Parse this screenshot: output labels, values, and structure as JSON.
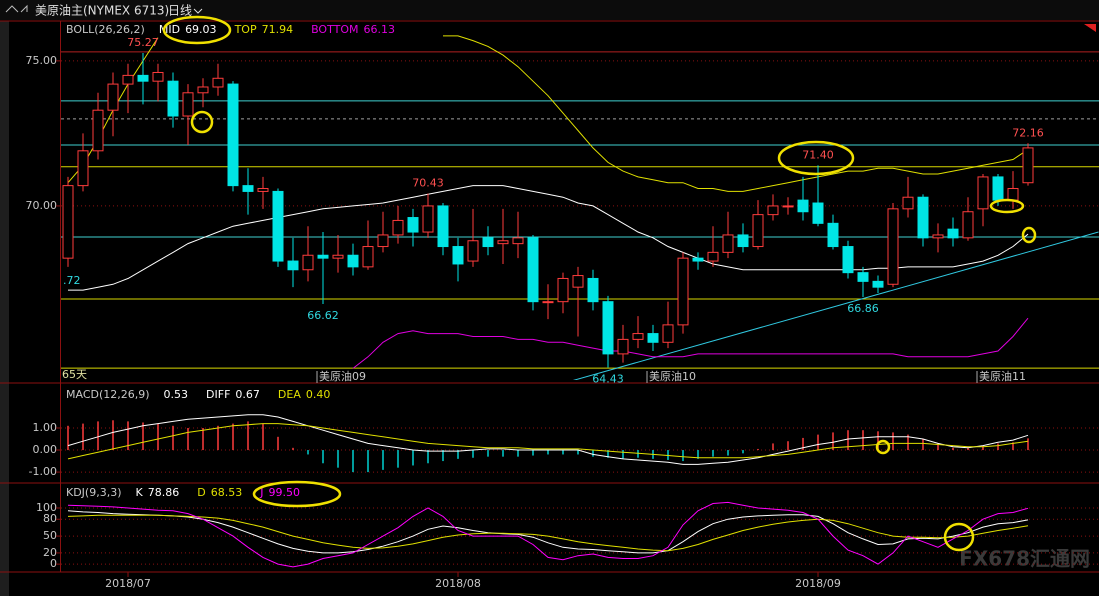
{
  "header": {
    "title": "美原油主(NYMEX 6713)",
    "period": "日线",
    "watermark": "FX678汇通网"
  },
  "chart_data": [
    {
      "type": "candlestick",
      "indicator": "BOLL(26,26,2)",
      "days_label": "65天",
      "left_label": ".72",
      "categories": [
        null,
        null,
        null,
        null,
        "2018/07",
        null,
        null,
        null,
        null,
        null,
        null,
        null,
        null,
        null,
        null,
        null,
        null,
        null,
        null,
        null,
        null,
        null,
        null,
        null,
        null,
        null,
        "2018/08",
        null,
        null,
        null,
        null,
        null,
        null,
        null,
        null,
        null,
        null,
        null,
        null,
        null,
        null,
        null,
        null,
        null,
        null,
        null,
        null,
        null,
        null,
        null,
        "2018/09",
        null,
        null,
        null,
        null,
        null,
        null,
        null,
        null,
        null,
        null,
        null,
        null,
        null,
        null
      ],
      "open": [
        68.2,
        70.7,
        71.9,
        73.3,
        74.2,
        74.5,
        74.3,
        74.3,
        73.1,
        73.9,
        74.1,
        74.2,
        70.7,
        70.5,
        70.5,
        68.1,
        67.8,
        68.3,
        68.2,
        68.3,
        67.9,
        68.6,
        69.0,
        69.6,
        69.1,
        70.0,
        68.6,
        68.1,
        68.9,
        68.7,
        68.7,
        68.9,
        66.7,
        66.7,
        67.2,
        67.5,
        66.7,
        64.9,
        65.4,
        65.6,
        65.3,
        65.9,
        68.2,
        68.1,
        68.4,
        69.0,
        68.6,
        69.7,
        70.0,
        70.2,
        70.1,
        69.4,
        68.6,
        67.7,
        67.4,
        67.3,
        69.9,
        70.3,
        68.9,
        69.2,
        68.9,
        69.9,
        71.0,
        70.2,
        70.8
      ],
      "high": [
        71.0,
        72.5,
        73.9,
        74.6,
        74.9,
        75.27,
        74.9,
        74.6,
        74.2,
        74.4,
        74.9,
        74.3,
        71.3,
        71.0,
        70.6,
        68.9,
        69.3,
        69.1,
        69.0,
        68.7,
        69.5,
        69.8,
        70.0,
        69.9,
        70.43,
        70.1,
        68.9,
        69.9,
        69.3,
        69.9,
        69.8,
        69.0,
        67.3,
        67.7,
        67.9,
        67.8,
        66.9,
        65.9,
        66.2,
        65.9,
        66.7,
        68.4,
        68.4,
        69.3,
        69.8,
        69.4,
        70.2,
        70.4,
        70.3,
        71.0,
        71.4,
        69.7,
        68.8,
        67.9,
        67.6,
        70.1,
        71.0,
        70.4,
        69.4,
        69.6,
        70.3,
        71.1,
        71.1,
        71.2,
        72.16
      ],
      "low": [
        67.9,
        70.5,
        71.6,
        72.4,
        73.2,
        73.5,
        73.6,
        72.7,
        72.1,
        73.4,
        73.8,
        70.5,
        69.7,
        69.9,
        67.9,
        67.2,
        67.4,
        66.62,
        67.7,
        67.6,
        67.8,
        68.4,
        68.7,
        68.6,
        68.9,
        68.3,
        67.4,
        67.9,
        68.3,
        68.0,
        68.2,
        66.4,
        66.1,
        66.3,
        65.5,
        66.4,
        64.43,
        64.6,
        65.1,
        65.0,
        65.1,
        65.6,
        67.8,
        67.9,
        68.2,
        68.4,
        68.5,
        69.5,
        69.7,
        69.5,
        69.3,
        68.5,
        67.5,
        66.86,
        67.0,
        67.2,
        69.6,
        68.6,
        68.4,
        68.6,
        68.8,
        69.3,
        70.0,
        69.9,
        70.7
      ],
      "close": [
        70.7,
        71.9,
        73.3,
        74.2,
        74.5,
        74.3,
        74.6,
        73.1,
        73.9,
        74.1,
        74.4,
        70.7,
        70.5,
        70.6,
        68.1,
        67.8,
        68.3,
        68.2,
        68.3,
        67.9,
        68.6,
        69.0,
        69.5,
        69.1,
        70.0,
        68.6,
        68.0,
        68.8,
        68.6,
        68.8,
        68.9,
        66.7,
        66.7,
        67.5,
        67.6,
        66.7,
        64.9,
        65.4,
        65.6,
        65.3,
        65.9,
        68.2,
        68.1,
        68.4,
        69.0,
        68.6,
        69.7,
        70.0,
        70.0,
        69.8,
        69.4,
        68.6,
        67.7,
        67.4,
        67.2,
        69.9,
        70.3,
        68.9,
        69.0,
        68.9,
        69.8,
        71.0,
        70.2,
        70.6,
        72.0
      ],
      "up_color": "#ff3c3c",
      "down_color": "#00e5e5",
      "series": [
        {
          "name": "MID",
          "color": "#ffffff",
          "last_value_label": "69.03",
          "values": [
            67.1,
            67.1,
            67.2,
            67.3,
            67.5,
            67.8,
            68.1,
            68.4,
            68.7,
            68.9,
            69.1,
            69.3,
            69.4,
            69.5,
            69.6,
            69.7,
            69.8,
            69.9,
            69.95,
            70.0,
            70.05,
            70.1,
            70.2,
            70.3,
            70.4,
            70.5,
            70.6,
            70.7,
            70.7,
            70.7,
            70.6,
            70.5,
            70.4,
            70.3,
            70.1,
            70.0,
            69.7,
            69.4,
            69.1,
            68.9,
            68.6,
            68.4,
            68.2,
            68.0,
            67.9,
            67.8,
            67.8,
            67.8,
            67.8,
            67.8,
            67.8,
            67.8,
            67.8,
            67.8,
            67.85,
            67.85,
            67.9,
            67.9,
            67.9,
            67.9,
            68.0,
            68.1,
            68.3,
            68.6,
            69.03
          ]
        },
        {
          "name": "TOP",
          "color": "#e0e000",
          "last_value_label": "71.94",
          "values": [
            70.8,
            71.4,
            72.3,
            73.3,
            74.2,
            75.0,
            75.8,
            null,
            null,
            null,
            null,
            null,
            null,
            null,
            null,
            null,
            null,
            null,
            null,
            null,
            null,
            null,
            null,
            null,
            null,
            75.86,
            75.86,
            75.7,
            75.5,
            75.2,
            74.8,
            74.3,
            73.8,
            73.2,
            72.6,
            72.0,
            71.5,
            71.2,
            71.0,
            70.9,
            70.8,
            70.8,
            70.6,
            70.6,
            70.5,
            70.5,
            70.6,
            70.7,
            70.8,
            70.9,
            71.0,
            71.1,
            71.2,
            71.2,
            71.3,
            71.3,
            71.2,
            71.1,
            71.1,
            71.2,
            71.3,
            71.4,
            71.5,
            71.6,
            71.94
          ]
        },
        {
          "name": "BOTTOM",
          "color": "#e000e0",
          "last_value_label": "66.13",
          "values": [
            null,
            null,
            null,
            null,
            null,
            null,
            null,
            null,
            null,
            null,
            null,
            null,
            null,
            null,
            null,
            null,
            null,
            null,
            null,
            64.4,
            64.8,
            65.3,
            65.6,
            65.7,
            65.6,
            65.6,
            65.6,
            65.5,
            65.5,
            65.5,
            65.4,
            65.4,
            65.3,
            65.3,
            65.2,
            65.1,
            65.0,
            65.0,
            64.9,
            64.8,
            64.8,
            64.8,
            64.9,
            64.9,
            64.9,
            64.9,
            64.9,
            64.9,
            64.9,
            64.9,
            64.9,
            64.9,
            64.9,
            64.9,
            64.9,
            64.9,
            64.8,
            64.8,
            64.8,
            64.8,
            64.8,
            64.9,
            65.0,
            65.5,
            66.13
          ]
        }
      ],
      "point_labels": [
        {
          "index": 5,
          "side": "high",
          "label": "75.27"
        },
        {
          "index": 17,
          "side": "low",
          "label": "66.62"
        },
        {
          "index": 24,
          "side": "high",
          "label": "70.43"
        },
        {
          "index": 36,
          "side": "low",
          "label": "64.43"
        },
        {
          "index": 50,
          "side": "high",
          "label": "71.40"
        },
        {
          "index": 53,
          "side": "low",
          "label": "66.86"
        },
        {
          "index": 64,
          "side": "high",
          "label": "72.16"
        }
      ],
      "contract_markers": [
        {
          "index": 17,
          "label": "美原油09"
        },
        {
          "index": 39,
          "label": "美原油10"
        },
        {
          "index": 61,
          "label": "美原油11"
        }
      ],
      "hlines": [
        {
          "value": 75.31,
          "color": "#b02020",
          "dash": false
        },
        {
          "value": 73.62,
          "color": "#40d0d0",
          "dash": false
        },
        {
          "value": 73.0,
          "color": "#a0a0a0",
          "dash": true
        },
        {
          "value": 72.1,
          "color": "#40d0d0",
          "dash": false
        },
        {
          "value": 71.35,
          "color": "#d8d800",
          "dash": false
        },
        {
          "value": 68.93,
          "color": "#40d0d0",
          "dash": false
        },
        {
          "value": 66.79,
          "color": "#d8d800",
          "dash": false
        },
        {
          "value": 64.41,
          "color": "#d8d800",
          "dash": false
        }
      ],
      "trendline": {
        "color": "#30c8e0",
        "x": [
          33.1,
          68.7
        ],
        "y": [
          63.9,
          69.1
        ]
      },
      "ylim": [
        64.0,
        76.34
      ],
      "yticks": [
        {
          "value": 70,
          "label": "70.00"
        },
        {
          "value": 75,
          "label": "75.00"
        }
      ],
      "grid": true
    },
    {
      "type": "macd",
      "indicator": "MACD(12,26,9)",
      "series": [
        {
          "kind": "bar",
          "up_color": "#ff3c3c",
          "down_color": "#00d0d0",
          "last_value_label": "0.53",
          "values": [
            1.1,
            1.2,
            1.3,
            1.35,
            1.3,
            1.25,
            1.2,
            1.1,
            1.0,
            1.0,
            1.1,
            1.2,
            1.3,
            1.2,
            0.6,
            0.1,
            -0.2,
            -0.6,
            -0.8,
            -1.0,
            -1.0,
            -0.9,
            -0.8,
            -0.7,
            -0.6,
            -0.5,
            -0.4,
            -0.35,
            -0.3,
            -0.3,
            -0.3,
            -0.25,
            -0.2,
            -0.2,
            -0.2,
            -0.3,
            -0.35,
            -0.4,
            -0.35,
            -0.4,
            -0.45,
            -0.5,
            -0.4,
            -0.3,
            -0.25,
            -0.15,
            0.05,
            0.3,
            0.4,
            0.55,
            0.7,
            0.8,
            0.9,
            0.9,
            0.85,
            0.8,
            0.7,
            0.5,
            0.3,
            0.1,
            0.1,
            0.2,
            0.3,
            0.35,
            0.53
          ]
        },
        {
          "kind": "line",
          "name": "DIFF",
          "color": "#ffffff",
          "last_value_label": "0.67",
          "values": [
            0.2,
            0.4,
            0.6,
            0.8,
            0.95,
            1.1,
            1.2,
            1.3,
            1.4,
            1.45,
            1.5,
            1.55,
            1.6,
            1.6,
            1.5,
            1.3,
            1.1,
            0.9,
            0.7,
            0.5,
            0.3,
            0.2,
            0.1,
            0.0,
            -0.05,
            -0.05,
            -0.05,
            0.0,
            0.05,
            0.05,
            0.0,
            0.0,
            0.0,
            0.0,
            0.0,
            -0.2,
            -0.3,
            -0.4,
            -0.45,
            -0.5,
            -0.55,
            -0.65,
            -0.65,
            -0.6,
            -0.55,
            -0.45,
            -0.35,
            -0.2,
            -0.05,
            0.1,
            0.25,
            0.35,
            0.5,
            0.55,
            0.6,
            0.6,
            0.6,
            0.5,
            0.3,
            0.15,
            0.1,
            0.2,
            0.35,
            0.45,
            0.67
          ]
        },
        {
          "kind": "line",
          "name": "DEA",
          "color": "#e0e000",
          "last_value_label": "0.40",
          "values": [
            -0.4,
            -0.25,
            -0.1,
            0.05,
            0.2,
            0.35,
            0.5,
            0.65,
            0.8,
            0.9,
            1.0,
            1.1,
            1.15,
            1.2,
            1.2,
            1.15,
            1.1,
            1.0,
            0.9,
            0.8,
            0.7,
            0.6,
            0.5,
            0.4,
            0.3,
            0.25,
            0.2,
            0.15,
            0.1,
            0.1,
            0.1,
            0.05,
            0.05,
            0.05,
            0.05,
            0.0,
            -0.05,
            -0.1,
            -0.15,
            -0.2,
            -0.25,
            -0.3,
            -0.35,
            -0.35,
            -0.35,
            -0.35,
            -0.3,
            -0.25,
            -0.2,
            -0.1,
            0.0,
            0.1,
            0.15,
            0.2,
            0.25,
            0.3,
            0.3,
            0.3,
            0.25,
            0.2,
            0.15,
            0.15,
            0.2,
            0.3,
            0.4
          ]
        }
      ],
      "ylim": [
        -1.45,
        2.86
      ],
      "yticks": [
        {
          "value": -1,
          "label": "-1.00"
        },
        {
          "value": 0,
          "label": "0.00"
        },
        {
          "value": 1,
          "label": "1.00"
        }
      ],
      "grid": true
    },
    {
      "type": "line",
      "indicator": "KDJ(9,3,3)",
      "series": [
        {
          "name": "K",
          "color": "#ffffff",
          "last_value_label": "78.86",
          "values": [
            95,
            93,
            92,
            90,
            89,
            88,
            87,
            86,
            84,
            80,
            74,
            66,
            56,
            46,
            36,
            28,
            23,
            20,
            20,
            22,
            26,
            32,
            40,
            50,
            62,
            68,
            65,
            60,
            56,
            54,
            53,
            48,
            38,
            30,
            27,
            26,
            24,
            22,
            20,
            20,
            24,
            40,
            58,
            72,
            80,
            84,
            86,
            87,
            88,
            88,
            85,
            72,
            56,
            45,
            35,
            36,
            45,
            46,
            45,
            50,
            56,
            66,
            72,
            74,
            78.86
          ]
        },
        {
          "name": "D",
          "color": "#e0e000",
          "last_value_label": "68.53",
          "values": [
            85,
            86,
            87,
            87,
            87,
            87,
            87,
            86,
            85,
            84,
            82,
            78,
            72,
            66,
            58,
            50,
            44,
            38,
            34,
            30,
            28,
            29,
            32,
            36,
            42,
            48,
            52,
            54,
            55,
            55,
            54,
            53,
            50,
            45,
            40,
            36,
            33,
            30,
            27,
            25,
            24,
            28,
            35,
            44,
            52,
            60,
            66,
            71,
            75,
            78,
            80,
            78,
            72,
            64,
            56,
            50,
            48,
            48,
            47,
            48,
            50,
            55,
            60,
            64,
            68.53
          ]
        },
        {
          "name": "J",
          "color": "#ff00ff",
          "last_value_label": "99.50",
          "values": [
            105,
            104,
            103,
            102,
            100,
            98,
            96,
            95,
            90,
            80,
            65,
            50,
            30,
            12,
            0,
            -5,
            0,
            10,
            15,
            20,
            35,
            50,
            65,
            85,
            100,
            85,
            60,
            50,
            50,
            50,
            50,
            35,
            12,
            8,
            15,
            18,
            12,
            10,
            10,
            15,
            30,
            70,
            95,
            108,
            110,
            105,
            100,
            98,
            96,
            92,
            80,
            50,
            25,
            15,
            0,
            20,
            50,
            40,
            30,
            45,
            60,
            80,
            90,
            92,
            99.5
          ]
        }
      ],
      "ylim": [
        -14,
        141
      ],
      "yticks": [
        0,
        20,
        50,
        80,
        100
      ],
      "grid": true
    }
  ]
}
